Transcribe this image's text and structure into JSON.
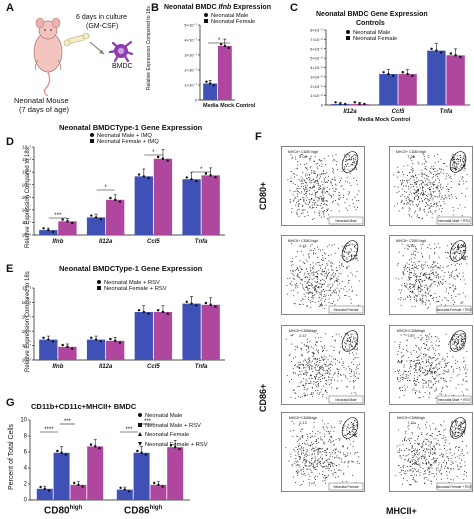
{
  "panels": {
    "A": {
      "label": "A",
      "culture_days": "6 days in culture",
      "culture_media": "(GM-CSF)",
      "cell": "BMDC",
      "source_line1": "Neonatal Mouse",
      "source_line2": "(7 days of age)"
    },
    "B": {
      "label": "B",
      "title_prefix": "Neonatal BMDC ",
      "title_gene": "Ifnb",
      "title_suffix": " Expression",
      "ylabel": "Relative Expression Compared to 18s",
      "xlabel": "Media Mock Control",
      "sig": "*",
      "legend": [
        "Neonatal Male",
        "Neonatal Female"
      ]
    },
    "C": {
      "label": "C",
      "title1": "Neonatal BMDC Gene Expression",
      "title2": "Controls",
      "xlabel": "Media Mock Control",
      "legend": [
        "Neonatal Male",
        "Neonatal Female"
      ]
    },
    "D": {
      "label": "D",
      "title": "Neonatal BMDCType-1 Gene Expression",
      "ylabel": "Relative Expression Compared to 18s",
      "legend": [
        "Neonatal Male + IMQ",
        "Neonatal Female + IMQ"
      ],
      "sigs": [
        "***",
        "*",
        "*",
        "*"
      ]
    },
    "E": {
      "label": "E",
      "title": "Neonatal BMDCType-1 Gene Expression",
      "ylabel": "Relative Expression Compared to 18s",
      "legend": [
        "Neonatal Male + RSV",
        "Neonatal Female + RSV"
      ]
    },
    "F": {
      "label": "F",
      "ylabel_top": "CD80+",
      "ylabel_bottom": "CD86+",
      "xlabel": "MHCII+",
      "plots": [
        {
          "gate": "MHCII+ CD80 high",
          "value": "2.08",
          "sample": "Neonatal Male"
        },
        {
          "gate": "MHCII+ CD80 high",
          "value": "7.25",
          "sample": "Neonatal Male + RSV"
        },
        {
          "gate": "MHCII+ CD80 high",
          "value": "2.41",
          "sample": "Neonatal Female"
        },
        {
          "gate": "MHCII+ CD80 high",
          "value": "7.62",
          "sample": "Neonatal Female + RSV"
        },
        {
          "gate": "MHCII+CD86high",
          "value": "2.47",
          "sample": "Neonatal Male"
        },
        {
          "gate": "MHCII+CD86high",
          "value": "7.27",
          "sample": "Neonatal Male + RSV"
        },
        {
          "gate": "MHCII+CD86high",
          "value": "2.13",
          "sample": "Neonatal Female"
        },
        {
          "gate": "MHCII+CD86high",
          "value": "7.14",
          "sample": "Neonatal Female + RSV"
        }
      ]
    },
    "G": {
      "label": "G",
      "title": "CD11b+CD11c+MHCII+ BMDC",
      "ylabel": "Percent of Total Cells",
      "legend": [
        "Neonatal Male",
        "Neonatal Male + RSV",
        "Neonatal Female",
        "Neonatal Female + RSV"
      ],
      "sigs": [
        "****",
        "***",
        "***",
        "***"
      ],
      "group_labels": [
        "CD80",
        "CD86"
      ],
      "group_sup": "high"
    }
  },
  "colors": {
    "male": "#3f51b5",
    "female": "#b0479e",
    "light_male": "#5566c4",
    "light_female": "#c25eb3"
  },
  "chart_data": [
    {
      "panel": "B",
      "type": "bar",
      "categories": [
        "Media Mock Control"
      ],
      "series": [
        {
          "name": "Neonatal Male",
          "values": [
            1.1e-07
          ]
        },
        {
          "name": "Neonatal Female",
          "values": [
            3.6e-07
          ]
        }
      ],
      "yticks": [
        "0",
        "1×10⁻⁷",
        "2×10⁻⁷",
        "3×10⁻⁷",
        "4×10⁻⁷",
        "5×10⁻⁷"
      ],
      "ylim": [
        0,
        5e-07
      ]
    },
    {
      "panel": "C",
      "type": "bar",
      "categories": [
        "Il12a",
        "Ccl5",
        "Tnfa"
      ],
      "series": [
        {
          "name": "Neonatal Male",
          "values": [
            1e-07,
            3.3e-06,
            5.8e-06
          ]
        },
        {
          "name": "Neonatal Female",
          "values": [
            1e-07,
            3.3e-06,
            5.3e-06
          ]
        }
      ],
      "yticks": [
        "0",
        "1×10⁻⁶",
        "2×10⁻⁶",
        "3×10⁻⁶",
        "4×10⁻⁶",
        "5×10⁻⁶",
        "6×10⁻⁶",
        "7×10⁻⁶",
        "8×10⁻⁶"
      ],
      "ylim": [
        0,
        8e-06
      ]
    },
    {
      "panel": "D",
      "type": "bar",
      "categories": [
        "Ifnb",
        "Il12a",
        "Ccl5",
        "Tnfa"
      ],
      "series": [
        {
          "name": "Neonatal Male + IMQ",
          "values": [
            0.25,
            0.9,
            3.0,
            2.85
          ]
        },
        {
          "name": "Neonatal Female + IMQ",
          "values": [
            0.7,
            1.8,
            3.9,
            3.05
          ]
        }
      ],
      "yticks": [
        "10⁻⁸",
        "10⁻⁷",
        "10⁻⁶",
        "10⁻⁵",
        "10⁻⁴",
        "10⁻³",
        "10⁻²",
        "10⁻¹"
      ],
      "ylim": [
        0,
        4.5
      ]
    },
    {
      "panel": "E",
      "type": "bar",
      "categories": [
        "Ifnb",
        "Il12a",
        "Ccl5",
        "Tnfa"
      ],
      "series": [
        {
          "name": "Neonatal Male + RSV",
          "values": [
            0.85,
            0.85,
            2.0,
            2.35
          ]
        },
        {
          "name": "Neonatal Female + RSV",
          "values": [
            0.55,
            0.8,
            2.0,
            2.3
          ]
        }
      ],
      "yticks": [
        "10⁻⁸",
        "10⁻⁷",
        "10⁻⁶",
        "10⁻⁵",
        "10⁻⁴",
        "10⁻³"
      ],
      "ylim": [
        0,
        3
      ]
    },
    {
      "panel": "G",
      "type": "bar",
      "categories": [
        "CD80high",
        "CD86high"
      ],
      "series": [
        {
          "name": "Neonatal Male",
          "values": [
            1.4,
            1.3
          ]
        },
        {
          "name": "Neonatal Male + RSV",
          "values": [
            5.9,
            5.9
          ]
        },
        {
          "name": "Neonatal Female",
          "values": [
            1.9,
            1.9
          ]
        },
        {
          "name": "Neonatal Female + RSV",
          "values": [
            6.7,
            6.6
          ]
        }
      ],
      "yticks": [
        "0",
        "2",
        "4",
        "6",
        "8",
        "10"
      ],
      "ylim": [
        0,
        10
      ]
    }
  ]
}
